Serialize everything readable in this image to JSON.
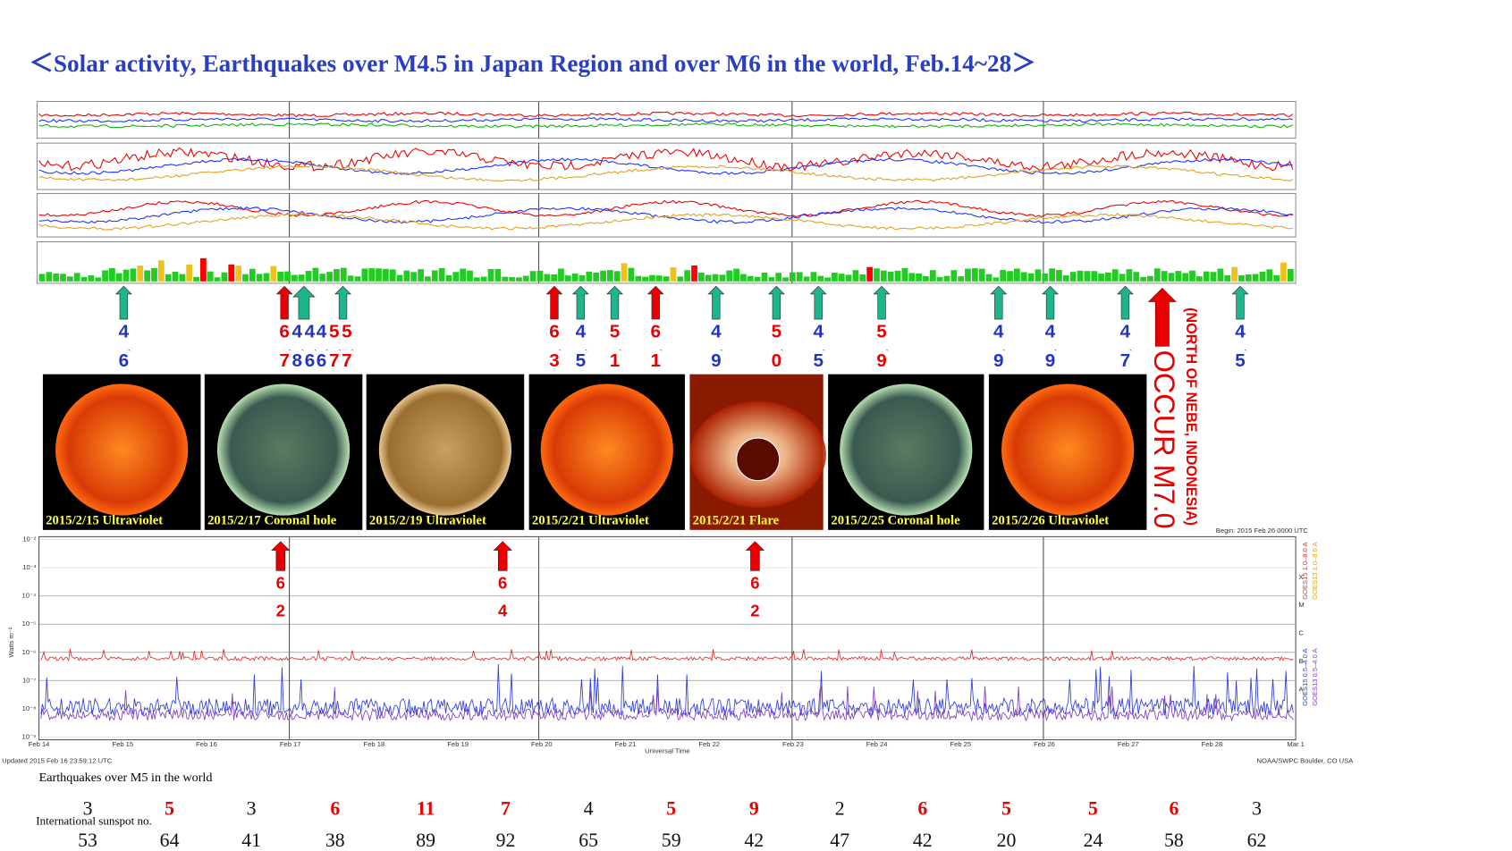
{
  "title": "＜Solar activity, Earthquakes over M4.5 in Japan Region and over M6 in the world, Feb.14~28＞",
  "japan_arrows": [
    "green",
    "red",
    "green",
    "green",
    "red",
    "green",
    "green",
    "red",
    "green",
    "green",
    "green",
    "green",
    "green",
    "green",
    "green",
    "green"
  ],
  "japan_magnitudes": [
    {
      "digits": [
        "4",
        "6"
      ],
      "color": "blue"
    },
    {
      "digits": [
        "6",
        "7"
      ],
      "color": "red"
    },
    {
      "digits": [
        "4",
        "8"
      ],
      "color": "blue"
    },
    {
      "digits": [
        "4",
        "6"
      ],
      "color": "blue"
    },
    {
      "digits": [
        "4",
        "6"
      ],
      "color": "blue"
    },
    {
      "digits": [
        "5",
        "7"
      ],
      "color": "red"
    },
    {
      "digits": [
        "5",
        "7"
      ],
      "color": "red"
    },
    {
      "digits": [
        "6",
        "3"
      ],
      "color": "red"
    },
    {
      "digits": [
        "4",
        "5"
      ],
      "color": "blue"
    },
    {
      "digits": [
        "5",
        "1"
      ],
      "color": "red"
    },
    {
      "digits": [
        "6",
        "1"
      ],
      "color": "red"
    },
    {
      "digits": [
        "4",
        "9"
      ],
      "color": "blue"
    },
    {
      "digits": [
        "5",
        "0"
      ],
      "color": "red"
    },
    {
      "digits": [
        "4",
        "5"
      ],
      "color": "blue"
    },
    {
      "digits": [
        "5",
        "9"
      ],
      "color": "red"
    },
    {
      "digits": [
        "4",
        "9"
      ],
      "color": "blue"
    },
    {
      "digits": [
        "4",
        "9"
      ],
      "color": "blue"
    },
    {
      "digits": [
        "4",
        "7"
      ],
      "color": "blue"
    },
    {
      "digits": [
        "4",
        "5"
      ],
      "color": "blue"
    }
  ],
  "big_event": {
    "text": "OCCUR M7.0",
    "place": "(NORTH OF NEBE, INDONESIA)"
  },
  "images": [
    {
      "caption": "2015/2/15 Ultraviolet",
      "style": "red"
    },
    {
      "caption": "2015/2/17 Coronal hole",
      "style": "green"
    },
    {
      "caption": "2015/2/19 Ultraviolet",
      "style": "gold"
    },
    {
      "caption": "2015/2/21 Ultraviolet",
      "style": "red"
    },
    {
      "caption": "2015/2/21 Flare",
      "style": "flare"
    },
    {
      "caption": "2015/2/25 Coronal hole",
      "style": "green"
    },
    {
      "caption": "2015/2/26 Ultraviolet",
      "style": "red"
    }
  ],
  "world_magnitudes": [
    {
      "digits": [
        "6",
        "2"
      ]
    },
    {
      "digits": [
        "6",
        "4"
      ]
    },
    {
      "digits": [
        "6",
        "2"
      ]
    }
  ],
  "xray": {
    "begin": "Begin: 2015 Feb 26 0000 UTC",
    "y_title": "Watts m⁻²",
    "y_labels": [
      "10⁻²",
      "10⁻³",
      "10⁻⁴",
      "10⁻⁵",
      "10⁻⁶",
      "10⁻⁷",
      "10⁻⁸",
      "10⁻⁹"
    ],
    "classes": [
      "X",
      "M",
      "C",
      "B",
      "A"
    ],
    "legend": [
      {
        "name": "GOES15 1.0–8.0 A",
        "color": "#e03030"
      },
      {
        "name": "GOES13 1.0–8.0 A",
        "color": "#e0a020"
      },
      {
        "name": "GOES15 0.5–4.0 A",
        "color": "#3040e0"
      },
      {
        "name": "GOES13 0.5–4.0 A",
        "color": "#8040c0"
      }
    ],
    "dates": [
      "Feb 14",
      "Feb 15",
      "Feb 16",
      "Feb 17",
      "Feb 18",
      "Feb 19",
      "Feb 20",
      "Feb 21",
      "Feb 22",
      "Feb 23",
      "Feb 24",
      "Feb 25",
      "Feb 26",
      "Feb 27",
      "Feb 28",
      "Mar 1"
    ],
    "x_title": "Universal Time",
    "updated": "Updated 2015 Feb 16 23:59:12 UTC",
    "credit": "NOAA/SWPC Boulder, CO USA"
  },
  "world_label": "Earthquakes over M5 in the world",
  "world_counts": [
    {
      "value": 3,
      "color": "black"
    },
    {
      "value": 5,
      "color": "red"
    },
    {
      "value": 3,
      "color": "black"
    },
    {
      "value": 6,
      "color": "red"
    },
    {
      "value": 11,
      "color": "red"
    },
    {
      "value": 7,
      "color": "red"
    },
    {
      "value": 4,
      "color": "black"
    },
    {
      "value": 5,
      "color": "red"
    },
    {
      "value": 9,
      "color": "red"
    },
    {
      "value": 2,
      "color": "black"
    },
    {
      "value": 6,
      "color": "red"
    },
    {
      "value": 5,
      "color": "red"
    },
    {
      "value": 5,
      "color": "red"
    },
    {
      "value": 6,
      "color": "red"
    },
    {
      "value": 3,
      "color": "black"
    }
  ],
  "sunspot_label": "International sunspot no.",
  "sunspots": [
    53,
    64,
    41,
    38,
    89,
    92,
    65,
    59,
    42,
    47,
    42,
    20,
    24,
    58,
    62
  ]
}
